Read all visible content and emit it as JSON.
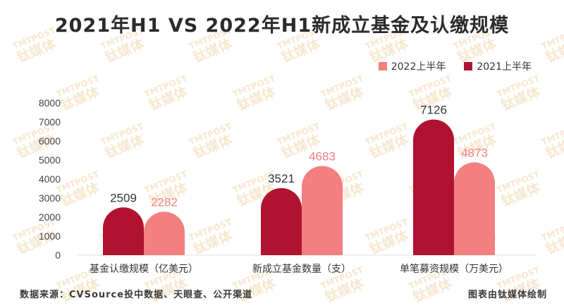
{
  "colors": {
    "s2022": "#f47f80",
    "s2021": "#b0132f",
    "watermark": "#f6e7cf"
  },
  "watermark": {
    "line1": "TMTPOST",
    "line2": "钛媒体"
  },
  "chart_data": {
    "type": "bar",
    "title": "2021年H1 VS 2022年H1新成立基金及认缴规模",
    "categories": [
      "基金认缴规模（亿美元）",
      "新成立基金数量（支）",
      "单笔募资规模（万美元）"
    ],
    "series": [
      {
        "name": "2021上半年",
        "values": [
          2509,
          3521,
          7126
        ]
      },
      {
        "name": "2022上半年",
        "values": [
          2282,
          4683,
          4873
        ]
      }
    ],
    "legend_order": [
      "2022上半年",
      "2021上半年"
    ],
    "yticks": [
      0,
      1000,
      2000,
      3000,
      4000,
      5000,
      6000,
      7000,
      8000
    ],
    "ylim": [
      0,
      8000
    ],
    "xlabel": "",
    "ylabel": "",
    "grid": false,
    "legend_position": "top-right"
  },
  "footer": {
    "source": "数据来源：CVSource投中数据、天眼查、公开渠道",
    "credit": "图表由钛媒体绘制"
  }
}
